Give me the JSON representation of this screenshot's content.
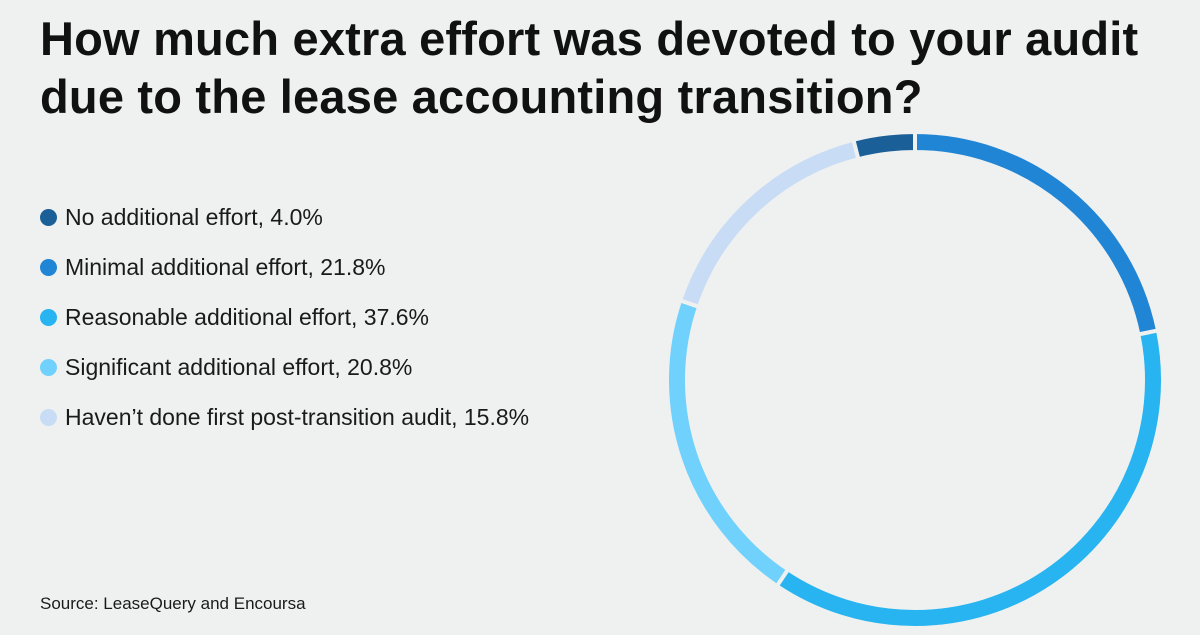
{
  "title": "How much extra effort was devoted to your audit due to the lease accounting transition?",
  "source": "Source: LeaseQuery and Encoursa",
  "legend": [
    {
      "label": "No additional effort, 4.0%",
      "color": "#1b5f98"
    },
    {
      "label": "Minimal additional effort, 21.8%",
      "color": "#2185d5"
    },
    {
      "label": "Reasonable additional effort, 37.6%",
      "color": "#27b4f0"
    },
    {
      "label": "Significant additional effort, 20.8%",
      "color": "#70d1fc"
    },
    {
      "label": "Haven’t done first post-transition audit, 15.8%",
      "color": "#c8dcf6"
    }
  ],
  "chart_data": {
    "type": "pie",
    "style": "donut",
    "title": "How much extra effort was devoted to your audit due to the lease accounting transition?",
    "categories": [
      "No additional effort",
      "Minimal additional effort",
      "Reasonable additional effort",
      "Significant additional effort",
      "Haven’t done first post-transition audit"
    ],
    "values": [
      4.0,
      21.8,
      37.6,
      20.8,
      15.8
    ],
    "unit": "%",
    "colors": [
      "#1b5f98",
      "#2185d5",
      "#27b4f0",
      "#70d1fc",
      "#c8dcf6"
    ],
    "legend_position": "left",
    "source": "Source: LeaseQuery and Encoursa"
  }
}
